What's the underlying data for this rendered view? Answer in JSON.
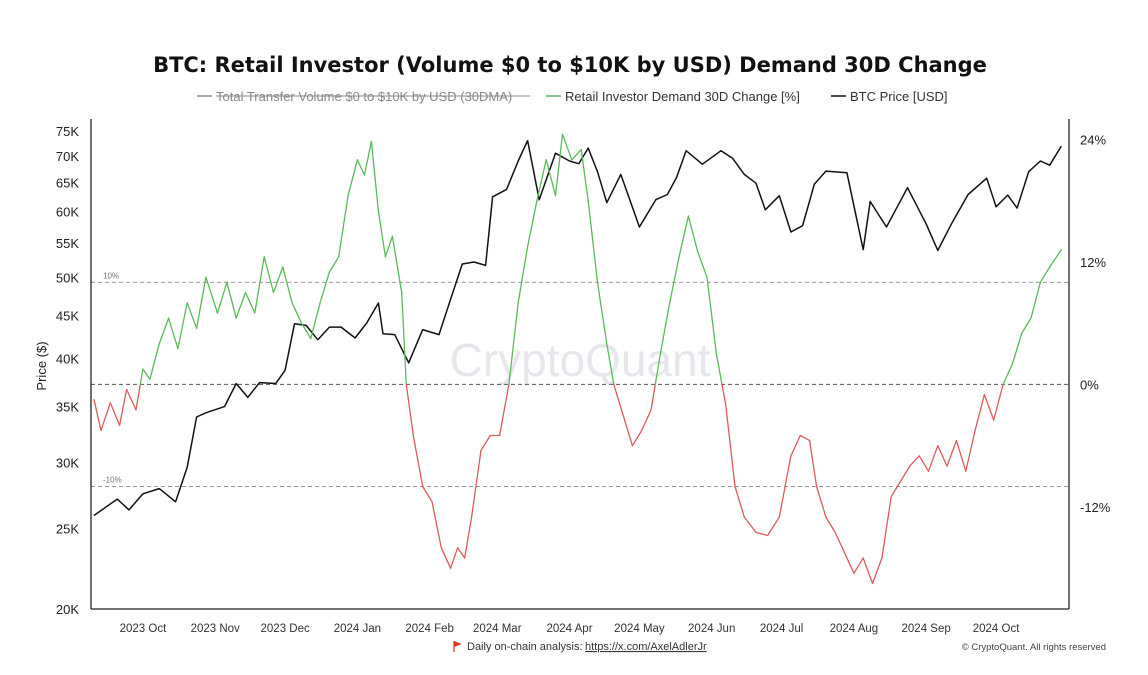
{
  "chart_data": {
    "type": "line",
    "title": "BTC: Retail Investor (Volume $0 to $10K by USD) Demand 30D Change",
    "legend": [
      {
        "name": "Total Transfer Volume $0 to $10K by USD (30DMA)",
        "color": "#888888",
        "struck": true
      },
      {
        "name": "Retail Investor Demand 30D Change [%]",
        "color": "#5cb85c"
      },
      {
        "name": "BTC Price [USD]",
        "color": "#111111"
      }
    ],
    "left_axis": {
      "label": "Price ($)",
      "scale": "log",
      "ticks": [
        {
          "v": 20000,
          "label": "20K"
        },
        {
          "v": 25000,
          "label": "25K"
        },
        {
          "v": 30000,
          "label": "30K"
        },
        {
          "v": 35000,
          "label": "35K"
        },
        {
          "v": 40000,
          "label": "40K"
        },
        {
          "v": 45000,
          "label": "45K"
        },
        {
          "v": 50000,
          "label": "50K"
        },
        {
          "v": 55000,
          "label": "55K"
        },
        {
          "v": 60000,
          "label": "60K"
        },
        {
          "v": 65000,
          "label": "65K"
        },
        {
          "v": 70000,
          "label": "70K"
        },
        {
          "v": 75000,
          "label": "75K"
        }
      ]
    },
    "right_axis": {
      "scale": "linear",
      "ylim": [
        -22,
        26
      ],
      "ticks": [
        {
          "v": 24,
          "label": "24%"
        },
        {
          "v": 12,
          "label": "12%"
        },
        {
          "v": 0,
          "label": "0%"
        },
        {
          "v": -12,
          "label": "-12%"
        }
      ]
    },
    "reference_lines": [
      {
        "v": 10,
        "label": "10%"
      },
      {
        "v": 0,
        "label": ""
      },
      {
        "v": -10,
        "label": "-10%"
      }
    ],
    "x_ticks": [
      "2023 Oct",
      "2023 Nov",
      "2023 Dec",
      "2024 Jan",
      "2024 Feb",
      "2024 Mar",
      "2024 Apr",
      "2024 May",
      "2024 Jun",
      "2024 Jul",
      "2024 Aug",
      "2024 Sep",
      "2024 Oct"
    ],
    "x_range": [
      "2023-09-10",
      "2024-10-31"
    ],
    "x_tick_dates": [
      "2023-10-01",
      "2023-11-01",
      "2023-12-01",
      "2024-01-01",
      "2024-02-01",
      "2024-03-01",
      "2024-04-01",
      "2024-05-01",
      "2024-06-01",
      "2024-07-01",
      "2024-08-01",
      "2024-09-01",
      "2024-10-01"
    ],
    "series": [
      {
        "name": "BTC Price [USD]",
        "axis": "left",
        "color": "#111111",
        "points": [
          [
            "2023-09-10",
            25900
          ],
          [
            "2023-09-15",
            26500
          ],
          [
            "2023-09-20",
            27100
          ],
          [
            "2023-09-25",
            26300
          ],
          [
            "2023-10-01",
            27500
          ],
          [
            "2023-10-08",
            27900
          ],
          [
            "2023-10-15",
            26900
          ],
          [
            "2023-10-20",
            29600
          ],
          [
            "2023-10-24",
            34000
          ],
          [
            "2023-10-28",
            34400
          ],
          [
            "2023-11-05",
            35000
          ],
          [
            "2023-11-10",
            37300
          ],
          [
            "2023-11-15",
            35900
          ],
          [
            "2023-11-20",
            37400
          ],
          [
            "2023-11-27",
            37300
          ],
          [
            "2023-12-01",
            38700
          ],
          [
            "2023-12-05",
            44000
          ],
          [
            "2023-12-10",
            43800
          ],
          [
            "2023-12-15",
            42100
          ],
          [
            "2023-12-20",
            43600
          ],
          [
            "2023-12-25",
            43600
          ],
          [
            "2023-12-31",
            42300
          ],
          [
            "2024-01-05",
            44100
          ],
          [
            "2024-01-10",
            46600
          ],
          [
            "2024-01-12",
            42800
          ],
          [
            "2024-01-17",
            42700
          ],
          [
            "2024-01-23",
            39500
          ],
          [
            "2024-01-29",
            43300
          ],
          [
            "2024-02-05",
            42700
          ],
          [
            "2024-02-10",
            47100
          ],
          [
            "2024-02-15",
            51900
          ],
          [
            "2024-02-20",
            52200
          ],
          [
            "2024-02-25",
            51700
          ],
          [
            "2024-02-28",
            62500
          ],
          [
            "2024-03-05",
            63800
          ],
          [
            "2024-03-10",
            69000
          ],
          [
            "2024-03-14",
            73000
          ],
          [
            "2024-03-19",
            62000
          ],
          [
            "2024-03-26",
            70500
          ],
          [
            "2024-04-01",
            69000
          ],
          [
            "2024-04-05",
            68500
          ],
          [
            "2024-04-09",
            71500
          ],
          [
            "2024-04-13",
            67000
          ],
          [
            "2024-04-17",
            61500
          ],
          [
            "2024-04-23",
            66500
          ],
          [
            "2024-05-01",
            57500
          ],
          [
            "2024-05-08",
            62000
          ],
          [
            "2024-05-13",
            62900
          ],
          [
            "2024-05-17",
            66000
          ],
          [
            "2024-05-21",
            71000
          ],
          [
            "2024-05-28",
            68400
          ],
          [
            "2024-06-05",
            71000
          ],
          [
            "2024-06-10",
            69500
          ],
          [
            "2024-06-15",
            66500
          ],
          [
            "2024-06-20",
            64900
          ],
          [
            "2024-06-24",
            60300
          ],
          [
            "2024-06-30",
            62700
          ],
          [
            "2024-07-05",
            56700
          ],
          [
            "2024-07-10",
            57700
          ],
          [
            "2024-07-15",
            64700
          ],
          [
            "2024-07-20",
            67100
          ],
          [
            "2024-07-29",
            66800
          ],
          [
            "2024-08-05",
            54000
          ],
          [
            "2024-08-08",
            61700
          ],
          [
            "2024-08-15",
            57500
          ],
          [
            "2024-08-24",
            64100
          ],
          [
            "2024-09-01",
            58000
          ],
          [
            "2024-09-06",
            53900
          ],
          [
            "2024-09-12",
            58100
          ],
          [
            "2024-09-19",
            62900
          ],
          [
            "2024-09-27",
            65800
          ],
          [
            "2024-10-01",
            60800
          ],
          [
            "2024-10-06",
            62800
          ],
          [
            "2024-10-10",
            60600
          ],
          [
            "2024-10-15",
            67000
          ],
          [
            "2024-10-20",
            69000
          ],
          [
            "2024-10-24",
            68200
          ],
          [
            "2024-10-29",
            71900
          ]
        ]
      },
      {
        "name": "Retail Investor Demand 30D Change [%]",
        "axis": "right",
        "color_positive": "#5cb85c",
        "color_negative": "#e05a5a",
        "points": [
          [
            "2023-09-10",
            -1.5
          ],
          [
            "2023-09-13",
            -4.5
          ],
          [
            "2023-09-17",
            -1.8
          ],
          [
            "2023-09-21",
            -4.0
          ],
          [
            "2023-09-24",
            -0.5
          ],
          [
            "2023-09-28",
            -2.5
          ],
          [
            "2023-10-01",
            1.5
          ],
          [
            "2023-10-04",
            0.5
          ],
          [
            "2023-10-08",
            4.0
          ],
          [
            "2023-10-12",
            6.5
          ],
          [
            "2023-10-16",
            3.5
          ],
          [
            "2023-10-20",
            8.0
          ],
          [
            "2023-10-24",
            5.5
          ],
          [
            "2023-10-28",
            10.5
          ],
          [
            "2023-11-02",
            7.0
          ],
          [
            "2023-11-06",
            10.0
          ],
          [
            "2023-11-10",
            6.5
          ],
          [
            "2023-11-14",
            9.0
          ],
          [
            "2023-11-18",
            7.0
          ],
          [
            "2023-11-22",
            12.5
          ],
          [
            "2023-11-26",
            9.0
          ],
          [
            "2023-11-30",
            11.5
          ],
          [
            "2023-12-04",
            8.0
          ],
          [
            "2023-12-08",
            6.0
          ],
          [
            "2023-12-12",
            4.5
          ],
          [
            "2023-12-16",
            8.0
          ],
          [
            "2023-12-20",
            11.0
          ],
          [
            "2023-12-24",
            12.5
          ],
          [
            "2023-12-28",
            18.5
          ],
          [
            "2024-01-01",
            22.0
          ],
          [
            "2024-01-04",
            20.5
          ],
          [
            "2024-01-07",
            23.8
          ],
          [
            "2024-01-10",
            17.0
          ],
          [
            "2024-01-13",
            12.5
          ],
          [
            "2024-01-16",
            14.5
          ],
          [
            "2024-01-20",
            9.0
          ],
          [
            "2024-01-22",
            0.0
          ],
          [
            "2024-01-25",
            -5.0
          ],
          [
            "2024-01-29",
            -10.0
          ],
          [
            "2024-02-02",
            -11.5
          ],
          [
            "2024-02-06",
            -16.0
          ],
          [
            "2024-02-10",
            -18.0
          ],
          [
            "2024-02-13",
            -16.0
          ],
          [
            "2024-02-16",
            -17.0
          ],
          [
            "2024-02-19",
            -13.0
          ],
          [
            "2024-02-23",
            -6.5
          ],
          [
            "2024-02-27",
            -5.0
          ],
          [
            "2024-03-02",
            -5.0
          ],
          [
            "2024-03-06",
            0.0
          ],
          [
            "2024-03-10",
            8.0
          ],
          [
            "2024-03-14",
            13.5
          ],
          [
            "2024-03-18",
            18.0
          ],
          [
            "2024-03-22",
            22.0
          ],
          [
            "2024-03-26",
            18.5
          ],
          [
            "2024-03-29",
            24.5
          ],
          [
            "2024-04-02",
            22.0
          ],
          [
            "2024-04-06",
            23.0
          ],
          [
            "2024-04-09",
            18.0
          ],
          [
            "2024-04-13",
            10.0
          ],
          [
            "2024-04-17",
            4.0
          ],
          [
            "2024-04-20",
            0.0
          ],
          [
            "2024-04-24",
            -3.0
          ],
          [
            "2024-04-28",
            -6.0
          ],
          [
            "2024-05-02",
            -4.5
          ],
          [
            "2024-05-06",
            -2.5
          ],
          [
            "2024-05-10",
            3.0
          ],
          [
            "2024-05-14",
            8.0
          ],
          [
            "2024-05-18",
            12.5
          ],
          [
            "2024-05-22",
            16.5
          ],
          [
            "2024-05-26",
            13.0
          ],
          [
            "2024-05-30",
            10.5
          ],
          [
            "2024-06-03",
            3.0
          ],
          [
            "2024-06-07",
            -2.0
          ],
          [
            "2024-06-11",
            -10.0
          ],
          [
            "2024-06-15",
            -13.0
          ],
          [
            "2024-06-20",
            -14.5
          ],
          [
            "2024-06-25",
            -14.8
          ],
          [
            "2024-06-30",
            -13.0
          ],
          [
            "2024-07-05",
            -7.0
          ],
          [
            "2024-07-09",
            -5.0
          ],
          [
            "2024-07-13",
            -5.5
          ],
          [
            "2024-07-16",
            -10.0
          ],
          [
            "2024-07-20",
            -13.0
          ],
          [
            "2024-07-24",
            -14.5
          ],
          [
            "2024-07-28",
            -16.5
          ],
          [
            "2024-08-01",
            -18.5
          ],
          [
            "2024-08-05",
            -17.0
          ],
          [
            "2024-08-09",
            -19.5
          ],
          [
            "2024-08-13",
            -17.0
          ],
          [
            "2024-08-17",
            -11.0
          ],
          [
            "2024-08-21",
            -9.5
          ],
          [
            "2024-08-25",
            -8.0
          ],
          [
            "2024-08-29",
            -7.0
          ],
          [
            "2024-09-02",
            -8.5
          ],
          [
            "2024-09-06",
            -6.0
          ],
          [
            "2024-09-10",
            -8.0
          ],
          [
            "2024-09-14",
            -5.5
          ],
          [
            "2024-09-18",
            -8.5
          ],
          [
            "2024-09-22",
            -4.5
          ],
          [
            "2024-09-26",
            -1.0
          ],
          [
            "2024-09-30",
            -3.5
          ],
          [
            "2024-10-04",
            0.0
          ],
          [
            "2024-10-08",
            2.0
          ],
          [
            "2024-10-12",
            5.0
          ],
          [
            "2024-10-16",
            6.5
          ],
          [
            "2024-10-20",
            10.0
          ],
          [
            "2024-10-24",
            11.5
          ],
          [
            "2024-10-29",
            13.2
          ]
        ]
      }
    ],
    "watermark": "CryptoQuant",
    "footer": {
      "prefix": "Daily on-chain analysis:",
      "link": "https://x.com/AxelAdlerJr",
      "copyright": "© CryptoQuant. All rights reserved"
    }
  }
}
